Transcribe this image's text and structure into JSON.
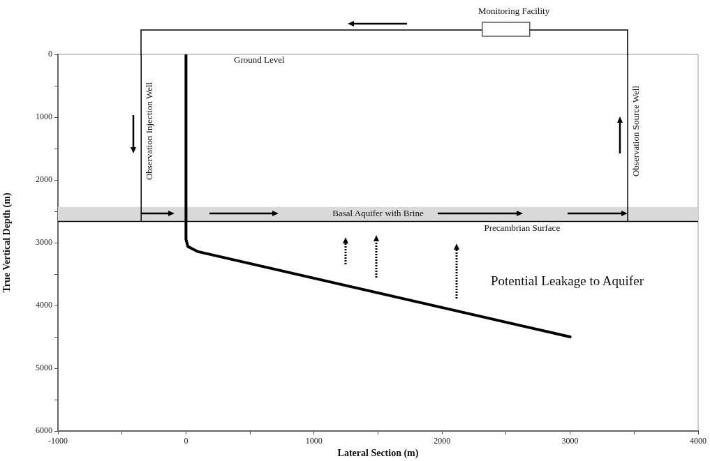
{
  "chart_data": {
    "type": "line",
    "xlabel": "Lateral Section (m)",
    "ylabel": "True Vertical Depth (m)",
    "series": [
      {
        "color": "#000000",
        "x": [
          0,
          0,
          15,
          90,
          3000
        ],
        "values": [
          0,
          2950,
          3060,
          3140,
          4500
        ]
      }
    ],
    "xlim": [
      -1000,
      4000
    ],
    "ylim": [
      6000,
      0
    ],
    "xticks": [
      -1000,
      {
        "value": -500,
        "label": null
      },
      0,
      {
        "value": 500,
        "label": null
      },
      1000,
      {
        "value": 1500,
        "label": null
      },
      2000,
      {
        "value": 2500,
        "label": null
      },
      3000,
      {
        "value": 3500,
        "label": null
      },
      4000
    ],
    "yticks": [
      0,
      {
        "value": 500,
        "label": null
      },
      1000,
      {
        "value": 1500,
        "label": null
      },
      2000,
      {
        "value": 2500,
        "label": null
      },
      3000,
      {
        "value": 3500,
        "label": null
      },
      4000,
      {
        "value": 4500,
        "label": null
      },
      5000,
      {
        "value": 5500,
        "label": null
      },
      6000
    ],
    "bands": [
      {
        "axis": "y",
        "from": 2430,
        "to": 2660,
        "label": "Basal Aquifer with Brine",
        "color": "#d9d9d9"
      }
    ],
    "ref_lines": [
      {
        "axis": "y",
        "value": 2660,
        "label": "Precambrian Surface",
        "color": "#000000"
      },
      {
        "axis": "x",
        "value": -350,
        "label": "Observation Injection Well",
        "color": "#000000"
      },
      {
        "axis": "x",
        "value": 3450,
        "label": "Observation Source Well",
        "color": "#000000"
      }
    ],
    "annotations": [
      "Ground Level",
      "Monitoring Facility",
      "Potential Leakage to Aquifer"
    ],
    "grid": false,
    "legend": false,
    "marker": "none",
    "line_style": "solid"
  }
}
